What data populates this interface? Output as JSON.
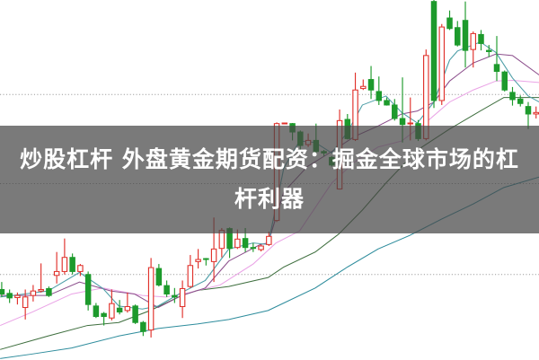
{
  "headline": "炒股杠杆 外盘黄金期货配资：掘金全球市场的杠杆利器",
  "chart_data": {
    "type": "candlestick",
    "title": "",
    "xlabel": "",
    "ylabel": "",
    "axes_visible": false,
    "grid": {
      "horizontal": true,
      "style": "dotted",
      "values": [
        885,
        588,
        285
      ]
    },
    "ylim": [
      0,
      1200
    ],
    "xlim": [
      0.8,
      69.4
    ],
    "colors": {
      "up": "#e0302a",
      "down": "#1d9a2c",
      "ma5": "#4f9fa8",
      "ma10": "#8c4f8c",
      "ma20": "#eaa4e6",
      "ma60": "#3f6f3f",
      "ma120": "#2f8d9d",
      "grid": "#9a9a9a"
    },
    "candles_ohlc": [
      [
        235,
        260,
        210,
        220
      ],
      [
        222,
        235,
        190,
        207
      ],
      [
        208,
        225,
        185,
        215
      ],
      [
        175,
        235,
        135,
        210
      ],
      [
        215,
        250,
        195,
        230
      ],
      [
        230,
        322,
        225,
        235
      ],
      [
        238,
        245,
        210,
        215
      ],
      [
        282,
        360,
        255,
        295
      ],
      [
        295,
        405,
        285,
        342
      ],
      [
        342,
        355,
        285,
        295
      ],
      [
        295,
        320,
        280,
        315
      ],
      [
        285,
        295,
        165,
        185
      ],
      [
        180,
        190,
        140,
        145
      ],
      [
        155,
        160,
        115,
        145
      ],
      [
        140,
        235,
        132,
        188
      ],
      [
        173,
        200,
        152,
        160
      ],
      [
        165,
        225,
        158,
        178
      ],
      [
        180,
        185,
        120,
        125
      ],
      [
        125,
        130,
        80,
        95
      ],
      [
        100,
        340,
        75,
        308
      ],
      [
        305,
        320,
        245,
        250
      ],
      [
        248,
        265,
        210,
        220
      ],
      [
        215,
        240,
        190,
        210
      ],
      [
        178,
        265,
        140,
        238
      ],
      [
        245,
        350,
        240,
        315
      ],
      [
        328,
        370,
        305,
        335
      ],
      [
        338,
        340,
        315,
        336
      ],
      [
        328,
        475,
        260,
        370
      ],
      [
        372,
        440,
        342,
        432
      ],
      [
        438,
        442,
        340,
        372
      ],
      [
        375,
        435,
        370,
        403
      ],
      [
        405,
        440,
        360,
        375
      ],
      [
        375,
        390,
        360,
        372
      ],
      [
        368,
        385,
        362,
        380
      ],
      [
        385,
        428,
        380,
        412
      ],
      [
        465,
        792,
        460,
        788
      ],
      [
        788,
        790,
        788,
        790
      ],
      [
        788,
        790,
        732,
        760
      ],
      [
        760,
        765,
        700,
        715
      ],
      [
        718,
        755,
        710,
        732
      ],
      [
        732,
        788,
        688,
        695
      ],
      [
        695,
        700,
        680,
        690
      ],
      [
        675,
        680,
        645,
        650
      ],
      [
        570,
        835,
        568,
        798
      ],
      [
        802,
        820,
        735,
        738
      ],
      [
        735,
        958,
        730,
        900
      ],
      [
        905,
        935,
        900,
        912
      ],
      [
        935,
        980,
        870,
        900
      ],
      [
        895,
        945,
        850,
        865
      ],
      [
        865,
        875,
        848,
        850
      ],
      [
        850,
        870,
        798,
        805
      ],
      [
        805,
        942,
        725,
        785
      ],
      [
        787,
        875,
        732,
        790
      ],
      [
        788,
        800,
        730,
        738
      ],
      [
        738,
        1035,
        732,
        1015
      ],
      [
        1195,
        1200,
        840,
        865
      ],
      [
        865,
        1120,
        850,
        1110
      ],
      [
        1140,
        1165,
        1100,
        1105
      ],
      [
        1108,
        1130,
        1045,
        1050
      ],
      [
        1132,
        1195,
        975,
        1032
      ],
      [
        1035,
        1095,
        975,
        1088
      ],
      [
        1085,
        1100,
        1032,
        1055
      ],
      [
        1032,
        1050,
        1010,
        1028
      ],
      [
        985,
        1080,
        930,
        962
      ],
      [
        960,
        965,
        895,
        900
      ],
      [
        892,
        910,
        848,
        868
      ],
      [
        870,
        882,
        845,
        855
      ],
      [
        845,
        860,
        770,
        820
      ],
      [
        820,
        845,
        805,
        825
      ]
    ],
    "moving_averages": [
      {
        "key": "ma5",
        "points": [
          [
            0.8,
            210
          ],
          [
            6.9,
            230
          ],
          [
            10.9,
            292
          ],
          [
            13.9,
            238
          ],
          [
            15.9,
            180
          ],
          [
            18.9,
            170
          ],
          [
            20.9,
            180
          ],
          [
            23.9,
            225
          ],
          [
            26.9,
            265
          ],
          [
            29.9,
            370
          ],
          [
            33,
            390
          ],
          [
            34.9,
            385
          ],
          [
            36.9,
            640
          ],
          [
            38.9,
            730
          ],
          [
            40.9,
            725
          ],
          [
            43,
            690
          ],
          [
            45,
            760
          ],
          [
            46.9,
            850
          ],
          [
            49.9,
            880
          ],
          [
            51.9,
            825
          ],
          [
            53.9,
            790
          ],
          [
            56,
            860
          ],
          [
            58,
            1000
          ],
          [
            59,
            1030
          ],
          [
            61.9,
            1060
          ],
          [
            63.9,
            1025
          ],
          [
            66,
            940
          ],
          [
            68,
            880
          ],
          [
            69.4,
            860
          ]
        ]
      },
      {
        "key": "ma10",
        "points": [
          [
            0.8,
            215
          ],
          [
            6.9,
            215
          ],
          [
            10.9,
            260
          ],
          [
            14.9,
            230
          ],
          [
            17.9,
            220
          ],
          [
            20.9,
            175
          ],
          [
            23.9,
            215
          ],
          [
            26.9,
            240
          ],
          [
            29.9,
            330
          ],
          [
            33.9,
            385
          ],
          [
            34.9,
            390
          ],
          [
            36.9,
            560
          ],
          [
            39.9,
            645
          ],
          [
            43,
            695
          ],
          [
            45.9,
            745
          ],
          [
            48.9,
            780
          ],
          [
            51.9,
            820
          ],
          [
            53.9,
            830
          ],
          [
            56,
            860
          ],
          [
            58,
            930
          ],
          [
            61,
            990
          ],
          [
            63.9,
            1020
          ],
          [
            66,
            1015
          ],
          [
            69.4,
            950
          ]
        ]
      },
      {
        "key": "ma20",
        "points": [
          [
            0.8,
            115
          ],
          [
            4.9,
            160
          ],
          [
            9.9,
            220
          ],
          [
            13.9,
            240
          ],
          [
            18.9,
            215
          ],
          [
            21.9,
            210
          ],
          [
            24.9,
            225
          ],
          [
            28.8,
            250
          ],
          [
            33,
            320
          ],
          [
            35.9,
            390
          ],
          [
            38.9,
            430
          ],
          [
            43,
            590
          ],
          [
            45.9,
            660
          ],
          [
            48.9,
            710
          ],
          [
            51.9,
            730
          ],
          [
            54.9,
            790
          ],
          [
            58,
            860
          ],
          [
            61,
            900
          ],
          [
            63.9,
            930
          ],
          [
            66,
            932
          ],
          [
            69.4,
            925
          ]
        ]
      },
      {
        "key": "ma60",
        "points": [
          [
            0.8,
            35
          ],
          [
            6.9,
            80
          ],
          [
            11.9,
            115
          ],
          [
            15.9,
            125
          ],
          [
            19.9,
            165
          ],
          [
            23.9,
            215
          ],
          [
            25.9,
            232
          ],
          [
            29.9,
            245
          ],
          [
            34.9,
            275
          ],
          [
            36.9,
            310
          ],
          [
            40.9,
            360
          ],
          [
            43.9,
            420
          ],
          [
            46.9,
            500
          ],
          [
            49.9,
            590
          ],
          [
            53.9,
            700
          ],
          [
            58,
            770
          ],
          [
            61.9,
            830
          ],
          [
            64.9,
            875
          ],
          [
            69.4,
            875
          ]
        ]
      },
      {
        "key": "ma120",
        "points": [
          [
            0.8,
            5
          ],
          [
            4.9,
            20
          ],
          [
            9.9,
            40
          ],
          [
            15.9,
            80
          ],
          [
            20.9,
            105
          ],
          [
            25.9,
            120
          ],
          [
            29.9,
            135
          ],
          [
            34.9,
            165
          ],
          [
            40.9,
            240
          ],
          [
            45,
            310
          ],
          [
            48.9,
            370
          ],
          [
            52.9,
            415
          ],
          [
            57,
            470
          ],
          [
            61,
            520
          ],
          [
            64.9,
            575
          ],
          [
            69.4,
            610
          ]
        ]
      }
    ]
  }
}
